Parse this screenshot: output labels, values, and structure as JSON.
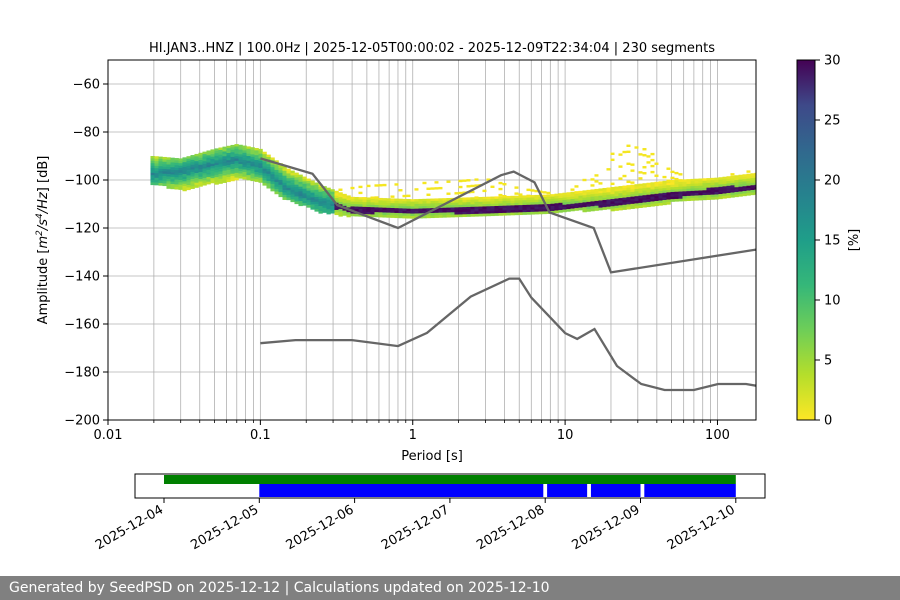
{
  "chart_data": {
    "type": "heatmap",
    "title": "HI.JAN3..HNZ | 100.0Hz | 2025-12-05T00:00:02 - 2025-12-09T22:34:04 | 230 segments",
    "xlabel": "Period [s]",
    "ylabel_parts": [
      "Amplitude [",
      "m",
      "2",
      "/",
      "s",
      "4",
      "/",
      "Hz",
      "] [dB]"
    ],
    "x_scale": "log",
    "xlim": [
      0.01,
      179
    ],
    "ylim": [
      -200,
      -50
    ],
    "x_ticks": [
      {
        "value": 0.01,
        "label": "0.01"
      },
      {
        "value": 0.1,
        "label": "0.1"
      },
      {
        "value": 1,
        "label": "1"
      },
      {
        "value": 10,
        "label": "10"
      },
      {
        "value": 100,
        "label": "100"
      }
    ],
    "y_ticks": [
      {
        "value": -60,
        "label": "−60"
      },
      {
        "value": -80,
        "label": "−80"
      },
      {
        "value": -100,
        "label": "−100"
      },
      {
        "value": -120,
        "label": "−120"
      },
      {
        "value": -140,
        "label": "−140"
      },
      {
        "value": -160,
        "label": "−160"
      },
      {
        "value": -180,
        "label": "−180"
      },
      {
        "value": -200,
        "label": "−200"
      }
    ],
    "grid": "vertical-minor-and-horizontal",
    "colormap": "viridis_r",
    "colorbar": {
      "label": "[%]",
      "range": [
        0,
        30
      ],
      "ticks": [
        {
          "value": 0,
          "label": "0"
        },
        {
          "value": 5,
          "label": "5"
        },
        {
          "value": 10,
          "label": "10"
        },
        {
          "value": 15,
          "label": "15"
        },
        {
          "value": 20,
          "label": "20"
        },
        {
          "value": 25,
          "label": "25"
        },
        {
          "value": 30,
          "label": "30"
        }
      ]
    },
    "mode_curve": [
      {
        "period": 0.02,
        "db": -97
      },
      {
        "period": 0.03,
        "db": -96
      },
      {
        "period": 0.05,
        "db": -93
      },
      {
        "period": 0.07,
        "db": -91
      },
      {
        "period": 0.1,
        "db": -94
      },
      {
        "period": 0.15,
        "db": -103
      },
      {
        "period": 0.25,
        "db": -109
      },
      {
        "period": 0.4,
        "db": -112
      },
      {
        "period": 1,
        "db": -112.5
      },
      {
        "period": 3,
        "db": -112
      },
      {
        "period": 8,
        "db": -111
      },
      {
        "period": 20,
        "db": -109
      },
      {
        "period": 50,
        "db": -106
      },
      {
        "period": 100,
        "db": -104
      },
      {
        "period": 179,
        "db": -102.5
      }
    ],
    "spread_curve": [
      {
        "period": 0.02,
        "low": -101,
        "high": -90
      },
      {
        "period": 0.03,
        "low": -104,
        "high": -91
      },
      {
        "period": 0.05,
        "low": -101,
        "high": -87
      },
      {
        "period": 0.07,
        "low": -99,
        "high": -85
      },
      {
        "period": 0.1,
        "low": -100,
        "high": -87
      },
      {
        "period": 0.15,
        "low": -108,
        "high": -95
      },
      {
        "period": 0.25,
        "low": -113,
        "high": -102
      },
      {
        "period": 0.4,
        "low": -115,
        "high": -107
      },
      {
        "period": 1,
        "low": -115,
        "high": -108
      },
      {
        "period": 3,
        "low": -114,
        "high": -107
      },
      {
        "period": 8,
        "low": -113,
        "high": -106
      },
      {
        "period": 20,
        "low": -112,
        "high": -103
      },
      {
        "period": 50,
        "low": -109,
        "high": -100
      },
      {
        "period": 100,
        "low": -107,
        "high": -99
      },
      {
        "period": 179,
        "low": -105,
        "high": -97
      }
    ],
    "rare_noise": [
      {
        "period": 0.3,
        "db": -104
      },
      {
        "period": 0.5,
        "db": -102
      },
      {
        "period": 1,
        "db": -101
      },
      {
        "period": 2,
        "db": -100
      },
      {
        "period": 3,
        "db": -99
      },
      {
        "period": 5,
        "db": -103
      },
      {
        "period": 10,
        "db": -106
      },
      {
        "period": 15,
        "db": -97
      },
      {
        "period": 20,
        "db": -89
      },
      {
        "period": 25,
        "db": -85
      },
      {
        "period": 35,
        "db": -87
      },
      {
        "period": 50,
        "db": -96
      },
      {
        "period": 80,
        "db": -100
      },
      {
        "period": 150,
        "db": -96
      }
    ],
    "nhnm": [
      [
        0.1,
        -91
      ],
      [
        0.22,
        -97.4
      ],
      [
        0.32,
        -110.5
      ],
      [
        0.8,
        -120
      ],
      [
        3.8,
        -98
      ],
      [
        4.6,
        -96.5
      ],
      [
        6.3,
        -101
      ],
      [
        7.9,
        -113.5
      ],
      [
        15.4,
        -120
      ],
      [
        20,
        -138.5
      ],
      [
        179,
        -129
      ]
    ],
    "nlnm": [
      [
        0.1,
        -168
      ],
      [
        0.17,
        -166.7
      ],
      [
        0.4,
        -166.7
      ],
      [
        0.8,
        -169.2
      ],
      [
        1.24,
        -163.7
      ],
      [
        2.4,
        -148.6
      ],
      [
        4.3,
        -141.1
      ],
      [
        5,
        -141.1
      ],
      [
        6,
        -149
      ],
      [
        10,
        -163.8
      ],
      [
        12,
        -166.2
      ],
      [
        15.6,
        -162.1
      ],
      [
        21.9,
        -177.5
      ],
      [
        31.6,
        -185
      ],
      [
        45,
        -187.5
      ],
      [
        70,
        -187.5
      ],
      [
        101,
        -185
      ],
      [
        154,
        -185
      ],
      [
        179,
        -185.7
      ]
    ]
  },
  "timeline": {
    "date_ticks": [
      "2025-12-04",
      "2025-12-05",
      "2025-12-06",
      "2025-12-07",
      "2025-12-08",
      "2025-12-09",
      "2025-12-10"
    ],
    "available_span": {
      "start_day": 0,
      "end_day": 6
    },
    "segments": [
      {
        "start_day": 1,
        "end_day": 3.98
      },
      {
        "start_day": 4.02,
        "end_day": 4.44
      },
      {
        "start_day": 4.48,
        "end_day": 5.0
      },
      {
        "start_day": 5.04,
        "end_day": 6.0
      }
    ],
    "colors": {
      "available": "#008000",
      "segments": "#0000ff"
    }
  },
  "footer": {
    "text": "Generated by SeedPSD on 2025-12-12 | Calculations updated on 2025-12-10"
  },
  "colors": {
    "noise_models": "#666666",
    "grid": "#b0b0b0"
  }
}
